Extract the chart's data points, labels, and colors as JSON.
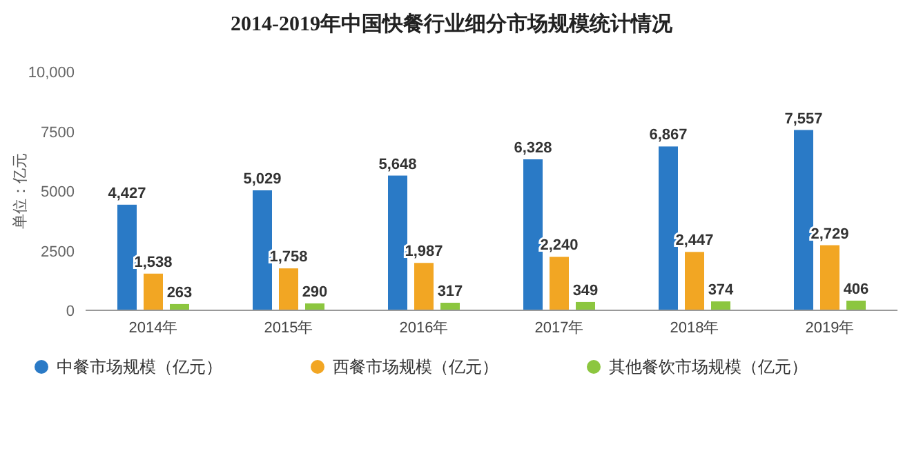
{
  "chart_data": {
    "type": "bar",
    "title": "2014-2019年中国快餐行业细分市场规模统计情况",
    "ylabel": "单位：亿元",
    "categories": [
      "2014年",
      "2015年",
      "2016年",
      "2017年",
      "2018年",
      "2019年"
    ],
    "series": [
      {
        "name": "中餐市场规模（亿元）",
        "color": "#2a7ac6",
        "values": [
          4427,
          5029,
          5648,
          6328,
          6867,
          7557
        ],
        "value_labels": [
          "4,427",
          "5,029",
          "5,648",
          "6,328",
          "6,867",
          "7,557"
        ]
      },
      {
        "name": "西餐市场规模（亿元）",
        "color": "#f2a623",
        "values": [
          1538,
          1758,
          1987,
          2240,
          2447,
          2729
        ],
        "value_labels": [
          "1,538",
          "1,758",
          "1,987",
          "2,240",
          "2,447",
          "2,729"
        ]
      },
      {
        "name": "其他餐饮市场规模（亿元）",
        "color": "#8cc63f",
        "values": [
          263,
          290,
          317,
          349,
          374,
          406
        ],
        "value_labels": [
          "263",
          "290",
          "317",
          "349",
          "374",
          "406"
        ]
      }
    ],
    "ylim": [
      0,
      10000
    ],
    "yticks": [
      0,
      2500,
      5000,
      7500,
      {
        "value": 10000,
        "label": "10,000"
      }
    ],
    "legend": "bottom",
    "grid": false
  }
}
